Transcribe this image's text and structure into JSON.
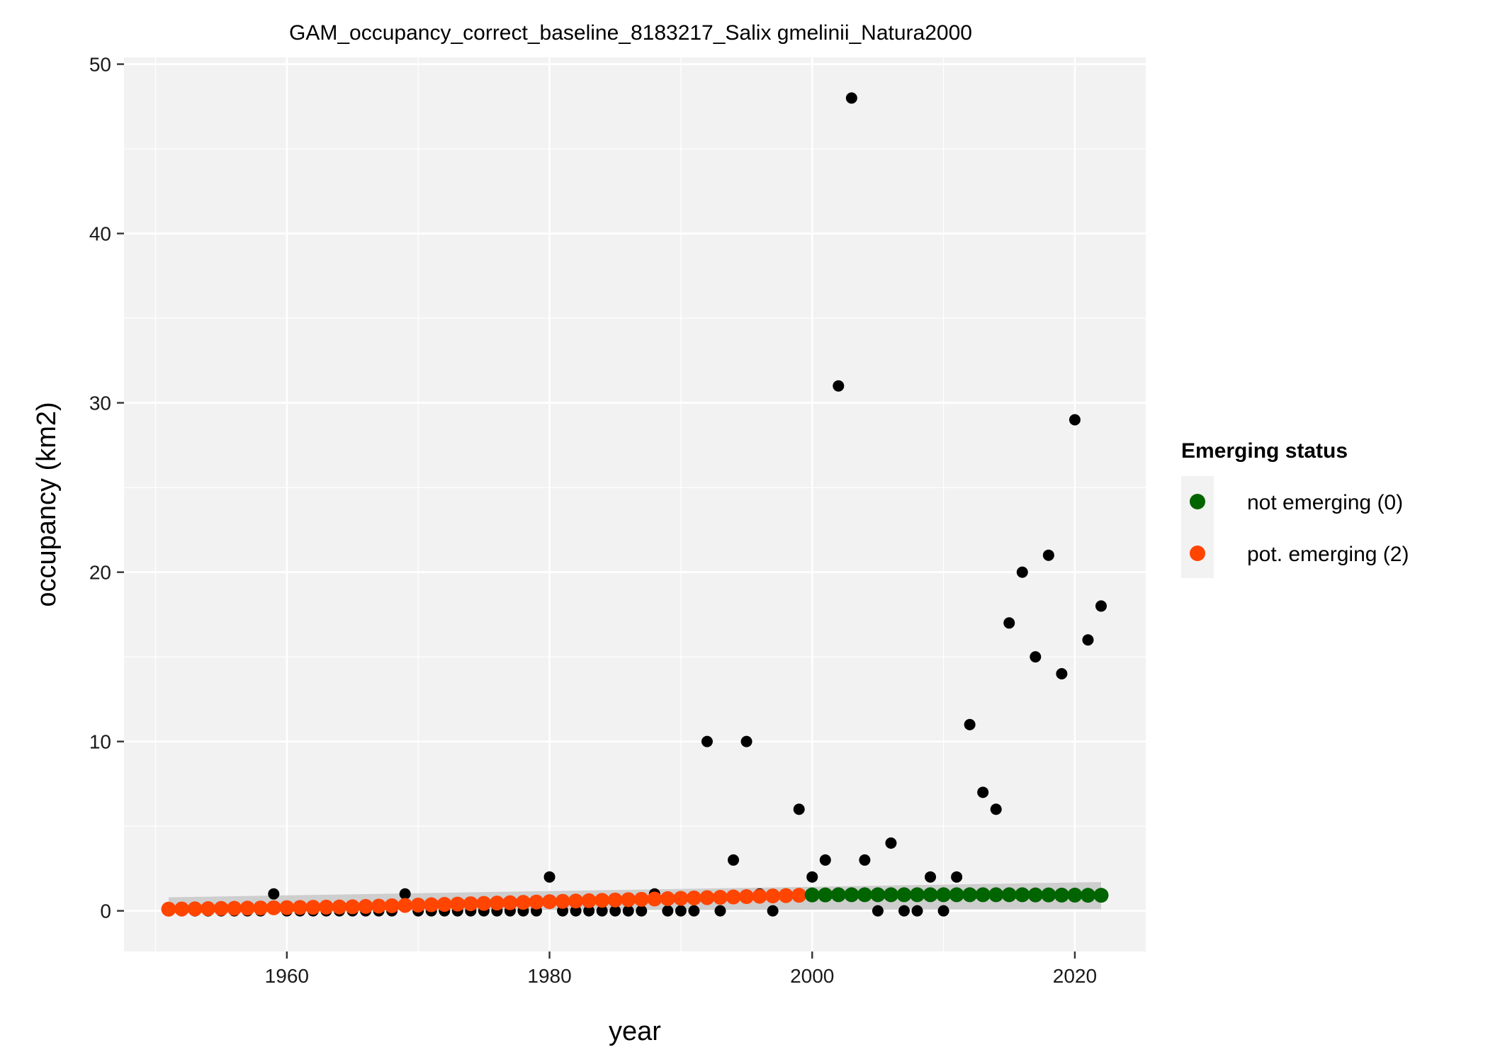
{
  "chart_data": {
    "type": "scatter",
    "title": "GAM_occupancy_correct_baseline_8183217_Salix gmelinii_Natura2000",
    "xlabel": "year",
    "ylabel": "occupancy (km2)",
    "xlim": [
      1947.6,
      2025.4
    ],
    "ylim": [
      -2.4,
      50.4
    ],
    "x_ticks": [
      1960,
      1980,
      2000,
      2020
    ],
    "y_ticks": [
      0,
      10,
      20,
      30,
      40,
      50
    ],
    "grid": true,
    "legend": {
      "title": "Emerging status",
      "position": "right",
      "entries": [
        {
          "label": "not emerging (0)",
          "color": "#006400"
        },
        {
          "label": "pot. emerging (2)",
          "color": "#ff4500"
        }
      ]
    },
    "colors": {
      "panel": "#f2f2f2",
      "grid": "#ffffff",
      "observed": "#000000",
      "ribbon": "#c8c8c8",
      "not_emerging": "#006400",
      "pot_emerging": "#ff4500"
    },
    "observed": {
      "x": [
        1951,
        1952,
        1953,
        1954,
        1955,
        1956,
        1957,
        1958,
        1959,
        1960,
        1961,
        1962,
        1963,
        1964,
        1965,
        1966,
        1967,
        1968,
        1969,
        1970,
        1971,
        1972,
        1973,
        1974,
        1975,
        1976,
        1977,
        1978,
        1979,
        1980,
        1981,
        1982,
        1983,
        1984,
        1985,
        1986,
        1987,
        1988,
        1989,
        1990,
        1991,
        1992,
        1993,
        1994,
        1995,
        1996,
        1997,
        1998,
        1999,
        2000,
        2001,
        2002,
        2003,
        2004,
        2005,
        2006,
        2007,
        2008,
        2009,
        2010,
        2011,
        2012,
        2013,
        2014,
        2015,
        2016,
        2017,
        2018,
        2019,
        2020,
        2021,
        2022
      ],
      "y": [
        0,
        0,
        0,
        0,
        0,
        0,
        0,
        0,
        1,
        0,
        0,
        0,
        0,
        0,
        0,
        0,
        0,
        0,
        1,
        0,
        0,
        0,
        0,
        0,
        0,
        0,
        0,
        0,
        0,
        2,
        0,
        0,
        0,
        0,
        0,
        0,
        0,
        1,
        0,
        0,
        0,
        10,
        0,
        3,
        10,
        1,
        0,
        1,
        6,
        2,
        3,
        31,
        48,
        3,
        0,
        4,
        0,
        0,
        2,
        0,
        2,
        11,
        7,
        6,
        17,
        20,
        15,
        21,
        14,
        29,
        16,
        18
      ]
    },
    "ribbon": {
      "x": [
        1951,
        2022
      ],
      "lower": [
        0.0,
        0.1
      ],
      "upper": [
        0.8,
        1.7
      ]
    },
    "fitted": {
      "x": [
        1951,
        1952,
        1953,
        1954,
        1955,
        1956,
        1957,
        1958,
        1959,
        1960,
        1961,
        1962,
        1963,
        1964,
        1965,
        1966,
        1967,
        1968,
        1969,
        1970,
        1971,
        1972,
        1973,
        1974,
        1975,
        1976,
        1977,
        1978,
        1979,
        1980,
        1981,
        1982,
        1983,
        1984,
        1985,
        1986,
        1987,
        1988,
        1989,
        1990,
        1991,
        1992,
        1993,
        1994,
        1995,
        1996,
        1997,
        1998,
        1999,
        2000,
        2001,
        2002,
        2003,
        2004,
        2005,
        2006,
        2007,
        2008,
        2009,
        2010,
        2011,
        2012,
        2013,
        2014,
        2015,
        2016,
        2017,
        2018,
        2019,
        2020,
        2021,
        2022
      ],
      "y": [
        0.1,
        0.11,
        0.12,
        0.13,
        0.14,
        0.15,
        0.16,
        0.17,
        0.18,
        0.19,
        0.2,
        0.21,
        0.22,
        0.23,
        0.24,
        0.26,
        0.28,
        0.3,
        0.32,
        0.34,
        0.36,
        0.38,
        0.4,
        0.42,
        0.44,
        0.46,
        0.48,
        0.5,
        0.52,
        0.54,
        0.56,
        0.58,
        0.6,
        0.62,
        0.64,
        0.66,
        0.68,
        0.7,
        0.72,
        0.74,
        0.76,
        0.78,
        0.8,
        0.82,
        0.84,
        0.86,
        0.88,
        0.9,
        0.92,
        0.94,
        0.94,
        0.95,
        0.95,
        0.95,
        0.95,
        0.95,
        0.95,
        0.95,
        0.95,
        0.95,
        0.95,
        0.95,
        0.95,
        0.95,
        0.95,
        0.95,
        0.94,
        0.94,
        0.93,
        0.93,
        0.92,
        0.92
      ],
      "status": [
        2,
        2,
        2,
        2,
        2,
        2,
        2,
        2,
        2,
        2,
        2,
        2,
        2,
        2,
        2,
        2,
        2,
        2,
        2,
        2,
        2,
        2,
        2,
        2,
        2,
        2,
        2,
        2,
        2,
        2,
        2,
        2,
        2,
        2,
        2,
        2,
        2,
        2,
        2,
        2,
        2,
        2,
        2,
        2,
        2,
        2,
        2,
        2,
        2,
        0,
        0,
        0,
        0,
        0,
        0,
        0,
        0,
        0,
        0,
        0,
        0,
        0,
        0,
        0,
        0,
        0,
        0,
        0,
        0,
        0,
        0,
        0
      ]
    }
  }
}
